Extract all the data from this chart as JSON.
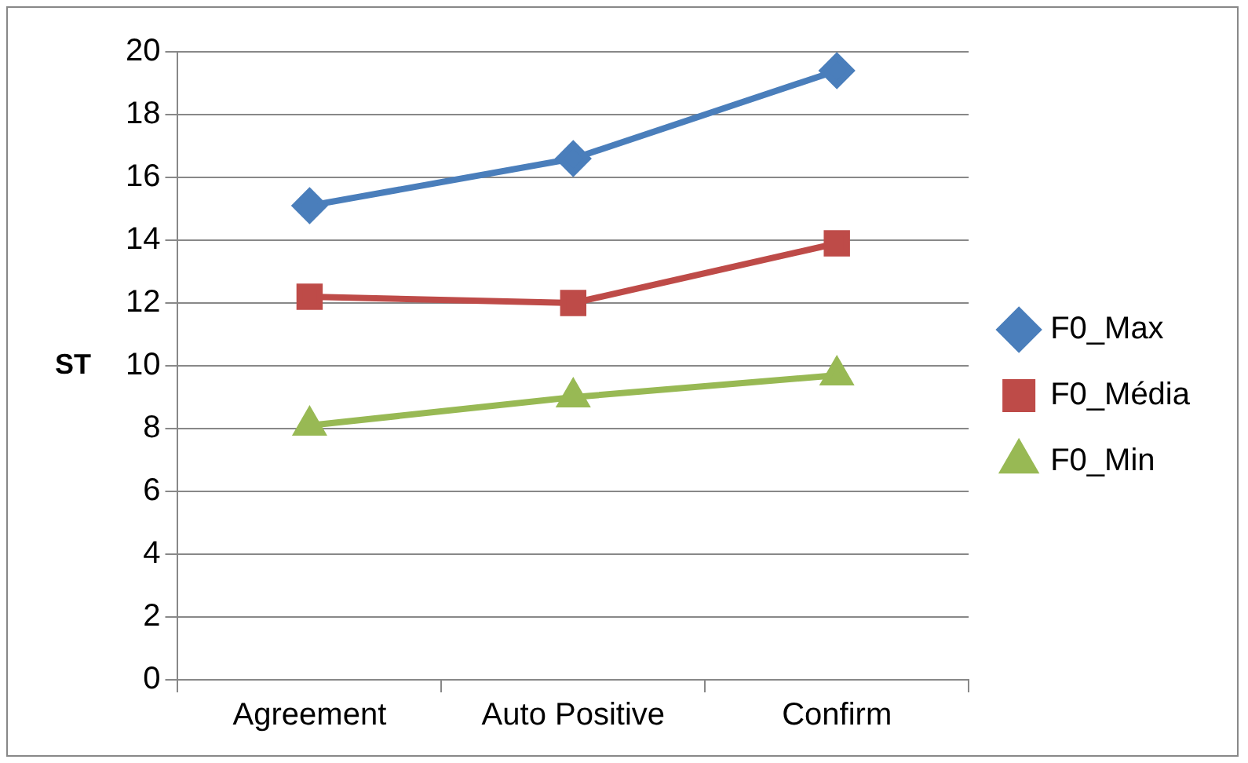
{
  "chart_data": {
    "type": "line",
    "ylabel": "ST",
    "categories": [
      "Agreement",
      "Auto Positive",
      "Confirm"
    ],
    "series": [
      {
        "name": "F0_Max",
        "color": "#4a7ebb",
        "marker": "diamond",
        "values": [
          15.1,
          16.6,
          19.4
        ]
      },
      {
        "name": "F0_Média",
        "color": "#be4b48",
        "marker": "square",
        "values": [
          12.2,
          12.0,
          13.9
        ]
      },
      {
        "name": "F0_Min",
        "color": "#98b954",
        "marker": "triangle",
        "values": [
          8.1,
          9.0,
          9.7
        ]
      }
    ],
    "ylim": [
      0,
      20
    ],
    "yticks": [
      0,
      2,
      4,
      6,
      8,
      10,
      12,
      14,
      16,
      18,
      20
    ],
    "grid": "y",
    "legend": "right"
  }
}
